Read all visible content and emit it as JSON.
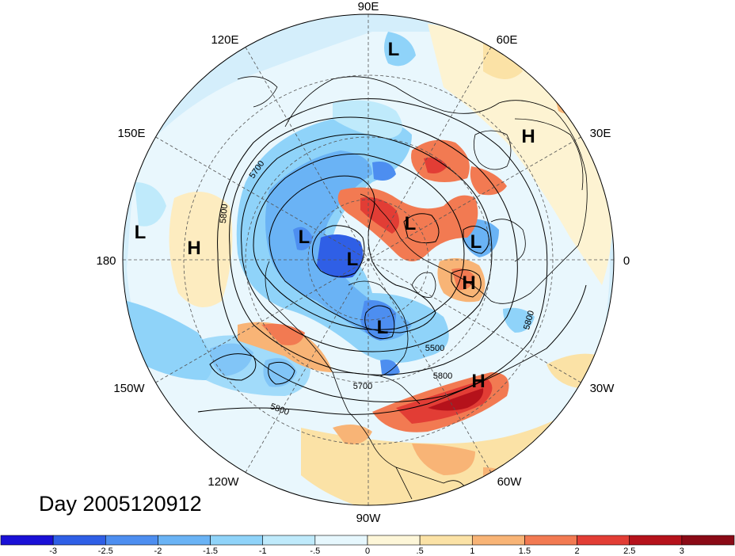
{
  "date_label": "Day 2005120912",
  "longitude_labels": [
    "90E",
    "60E",
    "30E",
    "0",
    "30W",
    "60W",
    "90W",
    "120W",
    "150W",
    "180",
    "150E",
    "120E"
  ],
  "pressure_centers": [
    {
      "type": "L",
      "label": "L"
    },
    {
      "type": "H",
      "label": "H"
    },
    {
      "type": "L",
      "label": "L"
    },
    {
      "type": "H",
      "label": "H"
    },
    {
      "type": "L",
      "label": "L"
    },
    {
      "type": "L",
      "label": "L"
    },
    {
      "type": "L",
      "label": "L"
    },
    {
      "type": "L",
      "label": "L"
    },
    {
      "type": "H",
      "label": "H"
    },
    {
      "type": "L",
      "label": "L"
    },
    {
      "type": "H",
      "label": "H"
    }
  ],
  "contour_labels": [
    "5700",
    "5800",
    "5800",
    "5500",
    "5800",
    "5700",
    "5800"
  ],
  "colorbar": {
    "tick_labels": [
      "-3",
      "-2.5",
      "-2",
      "-1.5",
      "-1",
      "-.5",
      "0",
      ".5",
      "1",
      "1.5",
      "2",
      "2.5",
      "3"
    ],
    "colors": [
      "#1a10d6",
      "#2f5fe6",
      "#4d8ef0",
      "#6ab3f5",
      "#8fd3f9",
      "#bfeafb",
      "#e6f7fd",
      "#fdf6d8",
      "#fbe2a6",
      "#f8b476",
      "#f27a52",
      "#e23d35",
      "#b5121b",
      "#8a0a16"
    ]
  }
}
